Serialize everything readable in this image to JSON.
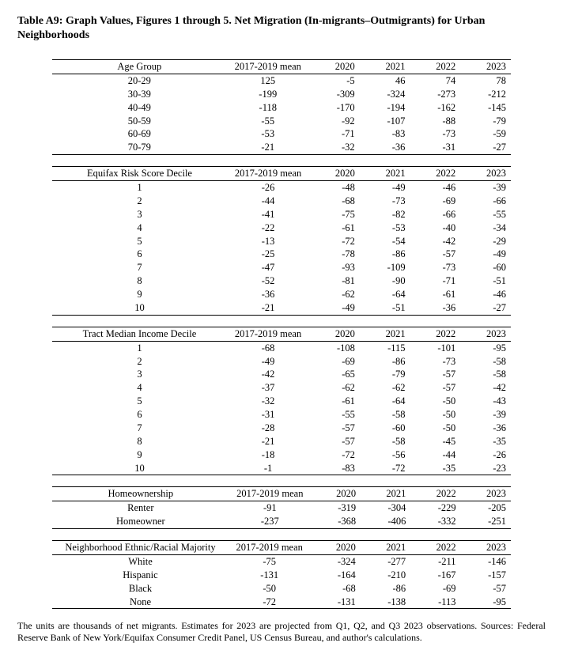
{
  "title": "Table A9: Graph Values, Figures 1 through 5. Net Migration (In-migrants–Outmigrants) for Urban Neighborhoods",
  "col_mean_header": "2017-2019 mean",
  "year_headers": [
    "2020",
    "2021",
    "2022",
    "2023"
  ],
  "sections": [
    {
      "label_header": "Age Group",
      "rows": [
        {
          "label": "20-29",
          "mean": "125",
          "y": [
            "-5",
            "46",
            "74",
            "78"
          ]
        },
        {
          "label": "30-39",
          "mean": "-199",
          "y": [
            "-309",
            "-324",
            "-273",
            "-212"
          ]
        },
        {
          "label": "40-49",
          "mean": "-118",
          "y": [
            "-170",
            "-194",
            "-162",
            "-145"
          ]
        },
        {
          "label": "50-59",
          "mean": "-55",
          "y": [
            "-92",
            "-107",
            "-88",
            "-79"
          ]
        },
        {
          "label": "60-69",
          "mean": "-53",
          "y": [
            "-71",
            "-83",
            "-73",
            "-59"
          ]
        },
        {
          "label": "70-79",
          "mean": "-21",
          "y": [
            "-32",
            "-36",
            "-31",
            "-27"
          ]
        }
      ]
    },
    {
      "label_header": "Equifax Risk Score Decile",
      "rows": [
        {
          "label": "1",
          "mean": "-26",
          "y": [
            "-48",
            "-49",
            "-46",
            "-39"
          ]
        },
        {
          "label": "2",
          "mean": "-44",
          "y": [
            "-68",
            "-73",
            "-69",
            "-66"
          ]
        },
        {
          "label": "3",
          "mean": "-41",
          "y": [
            "-75",
            "-82",
            "-66",
            "-55"
          ]
        },
        {
          "label": "4",
          "mean": "-22",
          "y": [
            "-61",
            "-53",
            "-40",
            "-34"
          ]
        },
        {
          "label": "5",
          "mean": "-13",
          "y": [
            "-72",
            "-54",
            "-42",
            "-29"
          ]
        },
        {
          "label": "6",
          "mean": "-25",
          "y": [
            "-78",
            "-86",
            "-57",
            "-49"
          ]
        },
        {
          "label": "7",
          "mean": "-47",
          "y": [
            "-93",
            "-109",
            "-73",
            "-60"
          ]
        },
        {
          "label": "8",
          "mean": "-52",
          "y": [
            "-81",
            "-90",
            "-71",
            "-51"
          ]
        },
        {
          "label": "9",
          "mean": "-36",
          "y": [
            "-62",
            "-64",
            "-61",
            "-46"
          ]
        },
        {
          "label": "10",
          "mean": "-21",
          "y": [
            "-49",
            "-51",
            "-36",
            "-27"
          ]
        }
      ]
    },
    {
      "label_header": "Tract Median Income Decile",
      "rows": [
        {
          "label": "1",
          "mean": "-68",
          "y": [
            "-108",
            "-115",
            "-101",
            "-95"
          ]
        },
        {
          "label": "2",
          "mean": "-49",
          "y": [
            "-69",
            "-86",
            "-73",
            "-58"
          ]
        },
        {
          "label": "3",
          "mean": "-42",
          "y": [
            "-65",
            "-79",
            "-57",
            "-58"
          ]
        },
        {
          "label": "4",
          "mean": "-37",
          "y": [
            "-62",
            "-62",
            "-57",
            "-42"
          ]
        },
        {
          "label": "5",
          "mean": "-32",
          "y": [
            "-61",
            "-64",
            "-50",
            "-43"
          ]
        },
        {
          "label": "6",
          "mean": "-31",
          "y": [
            "-55",
            "-58",
            "-50",
            "-39"
          ]
        },
        {
          "label": "7",
          "mean": "-28",
          "y": [
            "-57",
            "-60",
            "-50",
            "-36"
          ]
        },
        {
          "label": "8",
          "mean": "-21",
          "y": [
            "-57",
            "-58",
            "-45",
            "-35"
          ]
        },
        {
          "label": "9",
          "mean": "-18",
          "y": [
            "-72",
            "-56",
            "-44",
            "-26"
          ]
        },
        {
          "label": "10",
          "mean": "-1",
          "y": [
            "-83",
            "-72",
            "-35",
            "-23"
          ]
        }
      ]
    },
    {
      "label_header": "Homeownership",
      "rows": [
        {
          "label": "Renter",
          "mean": "-91",
          "y": [
            "-319",
            "-304",
            "-229",
            "-205"
          ]
        },
        {
          "label": "Homeowner",
          "mean": "-237",
          "y": [
            "-368",
            "-406",
            "-332",
            "-251"
          ]
        }
      ]
    },
    {
      "label_header": "Neighborhood Ethnic/Racial Majority",
      "rows": [
        {
          "label": "White",
          "mean": "-75",
          "y": [
            "-324",
            "-277",
            "-211",
            "-146"
          ]
        },
        {
          "label": "Hispanic",
          "mean": "-131",
          "y": [
            "-164",
            "-210",
            "-167",
            "-157"
          ]
        },
        {
          "label": "Black",
          "mean": "-50",
          "y": [
            "-68",
            "-86",
            "-69",
            "-57"
          ]
        },
        {
          "label": "None",
          "mean": "-72",
          "y": [
            "-131",
            "-138",
            "-113",
            "-95"
          ]
        }
      ]
    }
  ],
  "footnote": "The units are thousands of net migrants. Estimates for 2023 are projected from Q1, Q2, and Q3 2023 observations. Sources: Federal Reserve Bank of New York/Equifax Consumer Credit Panel, US Census Bureau, and author's calculations.",
  "colors": {
    "text": "#000000",
    "background": "#ffffff",
    "rule": "#000000"
  },
  "typography": {
    "title_fontsize_pt": 11,
    "body_fontsize_pt": 10,
    "footnote_fontsize_pt": 9,
    "font_family": "Times New Roman"
  }
}
